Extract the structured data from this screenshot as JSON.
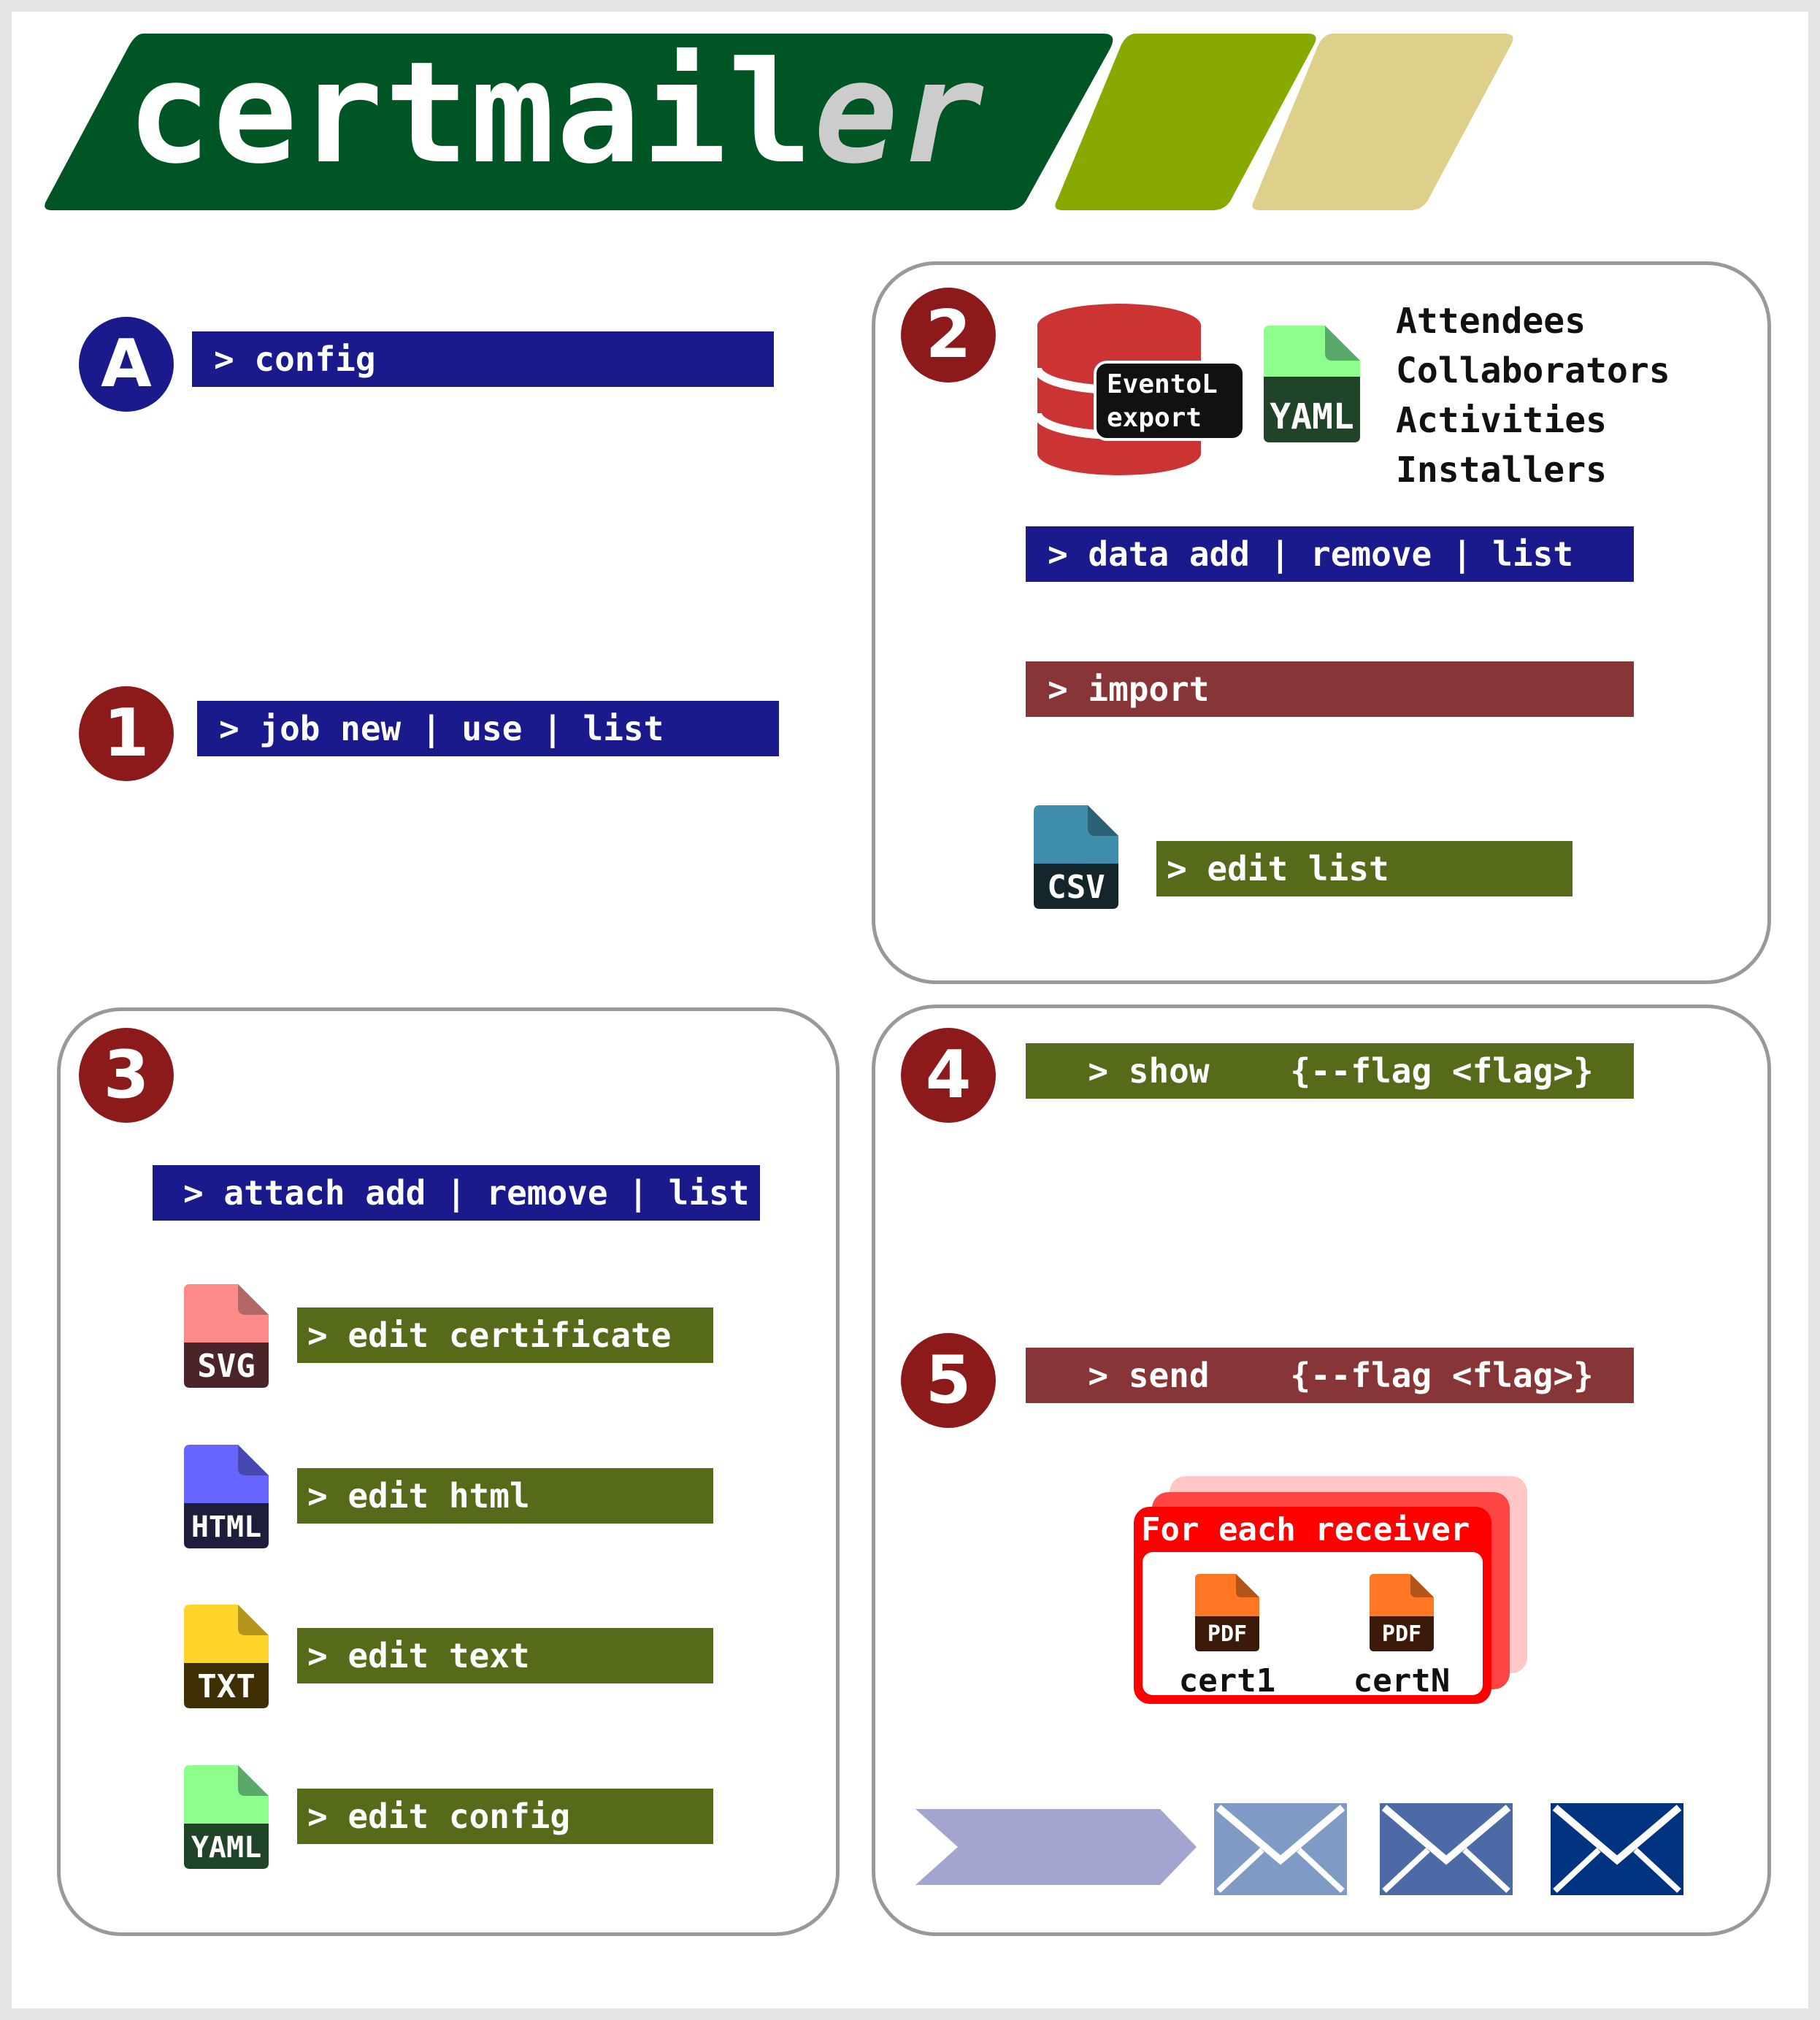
{
  "logo": {
    "text_main": "certmail",
    "text_accent": "er",
    "colors": {
      "dark_green": "#005525",
      "light_green": "#88aa00",
      "tan": "#decf8a",
      "accent_text": "#cccccc"
    }
  },
  "steps": {
    "A": {
      "badge": "A",
      "command": "> config",
      "color": "#1a1a8c"
    },
    "1": {
      "badge": "1",
      "command": "> job new | use | list"
    },
    "2": {
      "badge": "2",
      "database_label_line1": "EventoL",
      "database_label_line2": "export",
      "yaml_label": "YAML",
      "data_types": [
        "Attendees",
        "Collaborators",
        "Activities",
        "Installers"
      ],
      "cmd_data": "> data add | remove | list",
      "cmd_import": "> import",
      "csv_label": "CSV",
      "cmd_edit_list": "> edit list"
    },
    "3": {
      "badge": "3",
      "cmd_attach": "> attach add | remove | list",
      "files": [
        {
          "label": "SVG",
          "command": "> edit certificate",
          "color": "#ff8a8a",
          "dark": "#4a2428"
        },
        {
          "label": "HTML",
          "command": "> edit html",
          "color": "#6666ff",
          "dark": "#1e1e3c"
        },
        {
          "label": "TXT",
          "command": "> edit text",
          "color": "#ffd42a",
          "dark": "#3f2f05"
        },
        {
          "label": "YAML",
          "command": "> edit config",
          "color": "#8cff8c",
          "dark": "#1f4428"
        }
      ]
    },
    "4": {
      "badge": "4",
      "command": "  > show    {--flag <flag>}"
    },
    "5": {
      "badge": "5",
      "command": "  > send    {--flag <flag>}",
      "receiver_title": "For each receiver",
      "pdf_label": "PDF",
      "cert_first": "cert1",
      "cert_last": "certN"
    }
  },
  "colors": {
    "badge_red": "#8c1a1a",
    "cmd_blue": "#1a1a8c",
    "cmd_green": "#556b1a",
    "cmd_brown": "#873536",
    "database_red": "#cc3333",
    "envelope_1": "#7f9bc5",
    "envelope_2": "#4b6aa6",
    "envelope_3": "#003380",
    "arrow": "#a2a5cf"
  }
}
